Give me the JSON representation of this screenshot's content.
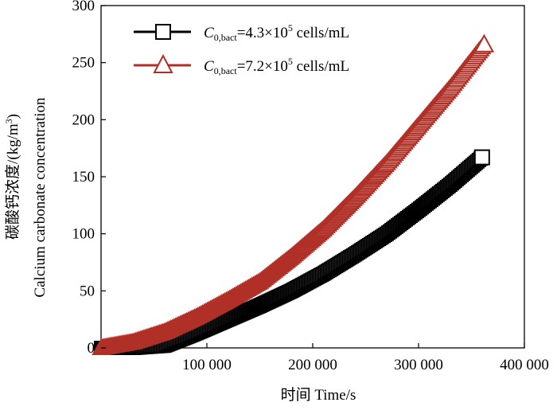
{
  "chart_data": {
    "type": "scatter",
    "title": "",
    "xlabel": "时间 Time/s",
    "ylabel_cn": "碳酸钙浓度/(kg/m",
    "ylabel_cn_sup": "3",
    "ylabel_cn_close": ")",
    "ylabel_en": "Calcium carbonate concentration",
    "xlim": [
      0,
      400000
    ],
    "ylim": [
      0,
      300
    ],
    "x_ticks": [
      100000,
      200000,
      300000,
      400000
    ],
    "x_tick_labels": [
      "100 000",
      "200 000",
      "300 000",
      "400 000"
    ],
    "y_ticks": [
      0,
      50,
      100,
      150,
      200,
      250,
      300
    ],
    "y_tick_labels": [
      "0",
      "50",
      "100",
      "150",
      "200",
      "250",
      "300"
    ],
    "series": [
      {
        "name": "C0,bact=4.3×10^5 cells/mL",
        "legend": {
          "var": "C",
          "sub": "0,bact",
          "mid": "=4.3×10",
          "sup": "5",
          "tail": " cells/mL"
        },
        "color": "#000000",
        "marker": "square",
        "x": [
          0,
          30000,
          60000,
          90000,
          120000,
          150000,
          180000,
          210000,
          240000,
          270000,
          300000,
          330000,
          360000
        ],
        "y": [
          0,
          0,
          2,
          13,
          25,
          37,
          50,
          65,
          82,
          100,
          121,
          143,
          167
        ]
      },
      {
        "name": "C0,bact=7.2×10^5 cells/mL",
        "legend": {
          "var": "C",
          "sub": "0,bact",
          "mid": "=7.2×10",
          "sup": "5",
          "tail": " cells/mL"
        },
        "color": "#b03028",
        "marker": "triangle",
        "x": [
          0,
          30000,
          60000,
          90000,
          120000,
          150000,
          180000,
          210000,
          240000,
          270000,
          300000,
          330000,
          362000
        ],
        "y": [
          0,
          5,
          14,
          27,
          42,
          58,
          80,
          104,
          132,
          162,
          195,
          228,
          266
        ]
      }
    ]
  }
}
